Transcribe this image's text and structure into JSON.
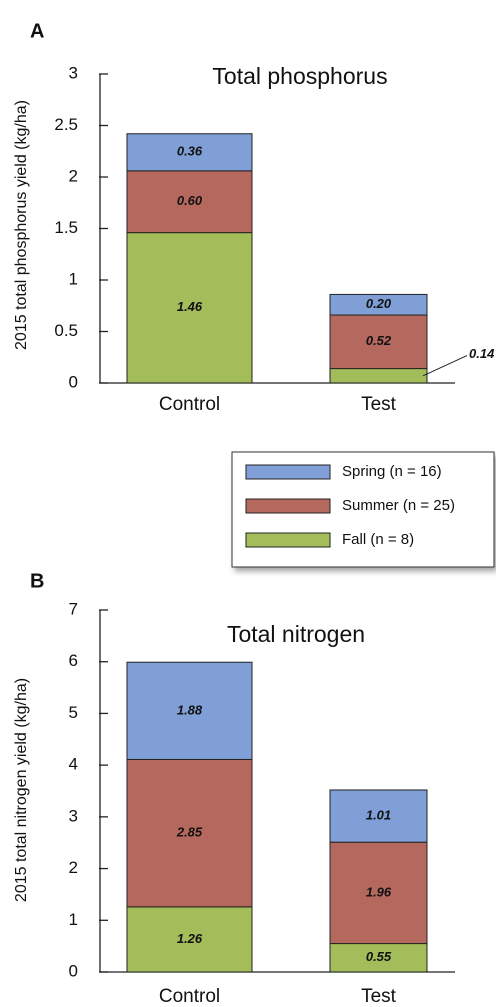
{
  "chart_data": [
    {
      "type": "bar",
      "stacked": true,
      "panel_label": "A",
      "title": "Total phosphorus",
      "y_label": "2015 total phosphorus yield (kg/ha)",
      "categories": [
        "Control",
        "Test"
      ],
      "series": [
        {
          "name": "Spring (n = 16)",
          "color": "#7f9fd6",
          "values": [
            0.36,
            0.2
          ],
          "value_labels": [
            "0.36",
            "0.20"
          ]
        },
        {
          "name": "Summer (n = 25)",
          "color": "#b5695e",
          "values": [
            0.6,
            0.52
          ],
          "value_labels": [
            "0.60",
            "0.52"
          ]
        },
        {
          "name": "Fall (n = 8)",
          "color": "#a3bd5a",
          "values": [
            1.46,
            0.14
          ],
          "value_labels": [
            "1.46",
            "0.14"
          ]
        }
      ],
      "ylim": [
        0,
        3
      ],
      "yticks": [
        0,
        0.5,
        1,
        1.5,
        2,
        2.5,
        3
      ]
    },
    {
      "type": "bar",
      "stacked": true,
      "panel_label": "B",
      "title": "Total nitrogen",
      "y_label": "2015 total nitrogen yield (kg/ha)",
      "categories": [
        "Control",
        "Test"
      ],
      "series": [
        {
          "color": "#7f9fd6",
          "values": [
            1.88,
            1.01
          ]
        },
        {
          "color": "#b5695e",
          "values": [
            2.85,
            1.96
          ]
        },
        {
          "color": "#a3bd5a",
          "values": [
            1.26,
            0.55
          ]
        }
      ],
      "ylim": [
        0,
        7
      ],
      "yticks": [
        0,
        1,
        2,
        3,
        4,
        5,
        6,
        7
      ]
    }
  ]
}
